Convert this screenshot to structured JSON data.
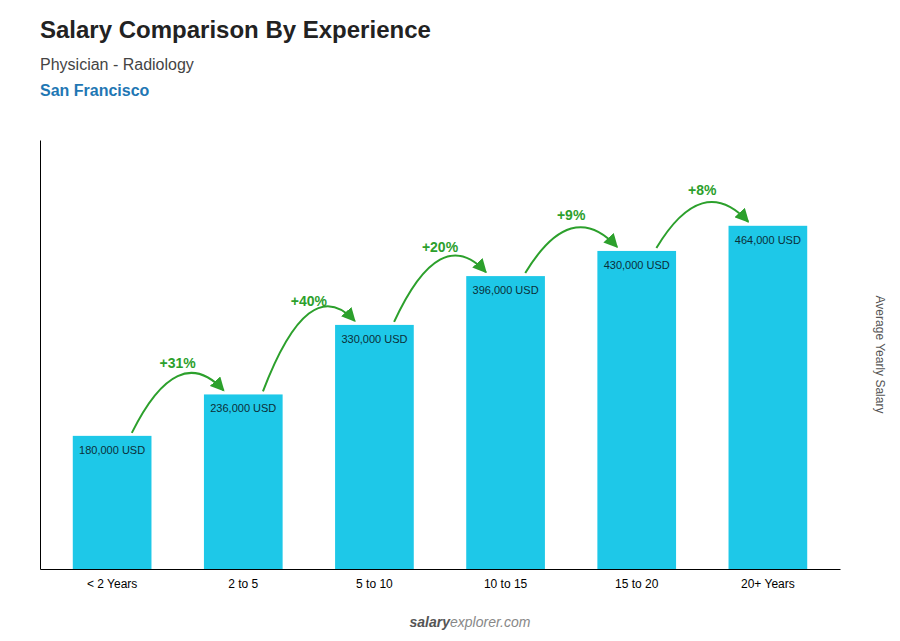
{
  "chart_data": {
    "type": "bar",
    "title": "Salary Comparison By Experience",
    "subtitle": [
      "Physician - Radiology",
      "San Francisco"
    ],
    "y_label": "Average Yearly Salary",
    "categories": [
      "< 2 Years",
      "2 to 5",
      "5 to 10",
      "10 to 15",
      "15 to 20",
      "20+ Years"
    ],
    "values": [
      180000,
      236000,
      330000,
      396000,
      430000,
      464000
    ],
    "value_labels": [
      "180,000 USD",
      "236,000 USD",
      "330,000 USD",
      "396,000 USD",
      "430,000 USD",
      "464,000 USD"
    ],
    "data_labels": true,
    "color": "#1EC8E8",
    "ylim": [
      0,
      580000
    ],
    "tick_labels": "x",
    "grid": false,
    "annotations": [
      "+31%",
      "+40%",
      "+20%",
      "+9%",
      "+8%"
    ],
    "watermark": [
      "salary",
      "explorer.com"
    ]
  }
}
